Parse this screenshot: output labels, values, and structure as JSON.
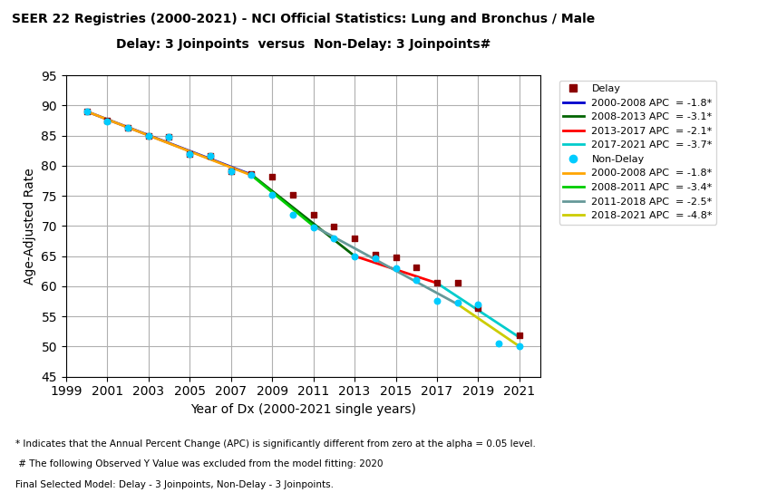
{
  "chart_data": {
    "type": "line",
    "title": "SEER 22 Registries (2000-2021) - NCI Official Statistics: Lung and Bronchus / Male",
    "subtitle": "Delay: 3 Joinpoints  versus  Non-Delay: 3 Joinpoints#",
    "x_label": "Year of Dx (2000-2021 single years)",
    "y_label": "Age-Adjusted Rate",
    "xlim": [
      1999,
      2022
    ],
    "ylim": [
      45,
      95
    ],
    "xticks": [
      1999,
      2001,
      2003,
      2005,
      2007,
      2009,
      2011,
      2013,
      2015,
      2017,
      2019,
      2021
    ],
    "yticks": [
      45,
      50,
      55,
      60,
      65,
      70,
      75,
      80,
      85,
      90,
      95
    ],
    "grid": true,
    "legend": "upper left",
    "annotations": [
      "* Indicates that the Annual Percent Change (APC) is significantly different from zero at the alpha = 0.05 level.",
      " # The following Observed Y Value was excluded from the model fitting: 2020",
      "Final Selected Model: Delay - 3 Joinpoints, Non-Delay - 3 Joinpoints."
    ],
    "series": [
      {
        "name": "Delay",
        "type": "scatter",
        "marker": "square",
        "color": "#8B0000",
        "x": [
          2000,
          2001,
          2002,
          2003,
          2004,
          2005,
          2006,
          2007,
          2008,
          2009,
          2010,
          2011,
          2012,
          2013,
          2014,
          2015,
          2016,
          2017,
          2018,
          2019,
          2021
        ],
        "values": [
          89.0,
          87.5,
          86.3,
          84.9,
          84.8,
          82.0,
          81.7,
          79.1,
          78.6,
          78.1,
          75.1,
          71.9,
          69.9,
          68.0,
          65.2,
          64.8,
          63.1,
          60.5,
          60.5,
          56.4,
          51.8
        ]
      },
      {
        "name": "2000-2008 APC  = -1.8*",
        "type": "line",
        "line_style": "solid",
        "color": "#0000CC",
        "x": [
          2000,
          2008
        ],
        "values": [
          89.0,
          78.5
        ]
      },
      {
        "name": "2008-2013 APC  = -3.1*",
        "type": "line",
        "line_style": "solid",
        "color": "#006400",
        "x": [
          2008,
          2013
        ],
        "values": [
          78.5,
          65.0
        ]
      },
      {
        "name": "2013-2017 APC  = -2.1*",
        "type": "line",
        "line_style": "solid",
        "color": "#FF0000",
        "x": [
          2013,
          2017
        ],
        "values": [
          65.0,
          60.5
        ]
      },
      {
        "name": "2017-2021 APC  = -3.7*",
        "type": "line",
        "line_style": "solid",
        "color": "#00CCCC",
        "x": [
          2017,
          2021
        ],
        "values": [
          60.5,
          51.5
        ]
      },
      {
        "name": "Non-Delay",
        "type": "scatter",
        "marker": "circle",
        "color": "#00CCFF",
        "x": [
          2000,
          2001,
          2002,
          2003,
          2004,
          2005,
          2006,
          2007,
          2008,
          2009,
          2010,
          2011,
          2012,
          2013,
          2014,
          2015,
          2016,
          2017,
          2018,
          2019,
          2020,
          2021
        ],
        "values": [
          89.0,
          87.3,
          86.3,
          84.9,
          84.8,
          81.9,
          81.6,
          79.0,
          78.5,
          75.1,
          71.8,
          69.8,
          67.9,
          65.0,
          64.7,
          63.0,
          61.0,
          57.6,
          57.3,
          57.0,
          50.5,
          50.0
        ]
      },
      {
        "name": "2000-2008 APC  = -1.8*",
        "type": "line",
        "line_style": "solid",
        "color": "#FFA500",
        "x": [
          2000,
          2008
        ],
        "values": [
          89.0,
          78.4
        ]
      },
      {
        "name": "2008-2011 APC  = -3.4*",
        "type": "line",
        "line_style": "solid",
        "color": "#00CC00",
        "x": [
          2008,
          2011
        ],
        "values": [
          78.4,
          70.0
        ]
      },
      {
        "name": "2011-2018 APC  = -2.5*",
        "type": "line",
        "line_style": "solid",
        "color": "#669999",
        "x": [
          2011,
          2018
        ],
        "values": [
          70.0,
          57.0
        ]
      },
      {
        "name": "2018-2021 APC  = -4.8*",
        "type": "line",
        "line_style": "solid",
        "color": "#CCCC00",
        "x": [
          2018,
          2021
        ],
        "values": [
          57.0,
          50.0
        ]
      }
    ]
  }
}
